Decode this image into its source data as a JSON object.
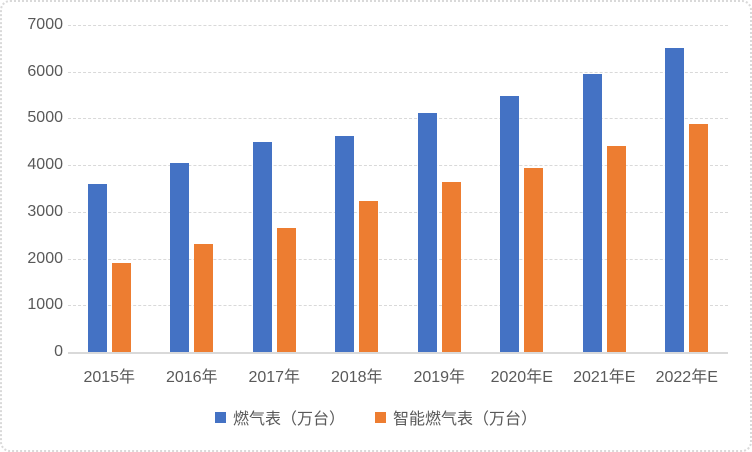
{
  "chart_data": {
    "type": "bar",
    "title": "",
    "xlabel": "",
    "ylabel": "",
    "categories": [
      "2015年",
      "2016年",
      "2017年",
      "2018年",
      "2019年",
      "2020年E",
      "2021年E",
      "2022年E"
    ],
    "series": [
      {
        "name": "燃气表（万台）",
        "color": "#4472C4",
        "values": [
          3600,
          4040,
          4500,
          4630,
          5110,
          5470,
          5960,
          6500
        ]
      },
      {
        "name": "智能燃气表（万台）",
        "color": "#ED7D31",
        "values": [
          1900,
          2320,
          2660,
          3240,
          3650,
          3930,
          4400,
          4890
        ]
      }
    ],
    "ylim": [
      0,
      7000
    ],
    "yticks": [
      0,
      1000,
      2000,
      3000,
      4000,
      5000,
      6000,
      7000
    ],
    "grid": "horizontal-dashed",
    "legend_position": "bottom"
  },
  "colors": {
    "axis_text": "#595959",
    "gridline": "#D9D9D9",
    "axis_line": "#D9D9D9",
    "border": "#D9D9D9",
    "background": "#FFFFFF"
  }
}
